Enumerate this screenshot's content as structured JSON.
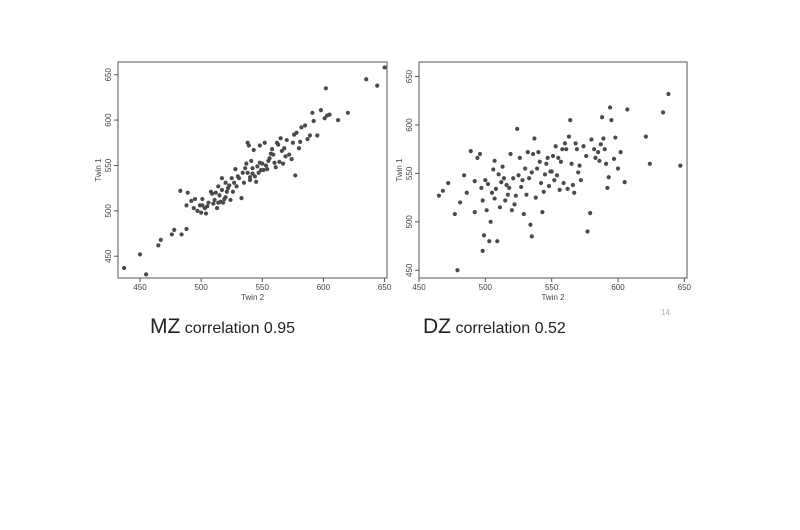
{
  "colors": {
    "point": "#4a4a4a",
    "frame": "#555555",
    "background": "#ffffff"
  },
  "captions": {
    "mz": {
      "big": "MZ",
      "small": " correlation 0.95"
    },
    "dz": {
      "big": "DZ",
      "small": " correlation 0.52"
    }
  },
  "page_number": "14",
  "chart_data": [
    {
      "type": "scatter",
      "xlabel": "Twin 2",
      "ylabel": "Twin 1",
      "xlim": [
        432,
        652
      ],
      "ylim": [
        426,
        664
      ],
      "xticks": [
        450,
        500,
        550,
        600,
        650
      ],
      "yticks": [
        450,
        500,
        550,
        600,
        650
      ],
      "grid": false,
      "points": [
        [
          437,
          437
        ],
        [
          450,
          452
        ],
        [
          455,
          430
        ],
        [
          465,
          462
        ],
        [
          467,
          468
        ],
        [
          476,
          474
        ],
        [
          478,
          479
        ],
        [
          484,
          474
        ],
        [
          488,
          480
        ],
        [
          483,
          522
        ],
        [
          488,
          506
        ],
        [
          489,
          520
        ],
        [
          492,
          511
        ],
        [
          494,
          503
        ],
        [
          495,
          513
        ],
        [
          497,
          500
        ],
        [
          499,
          506
        ],
        [
          500,
          498
        ],
        [
          501,
          506
        ],
        [
          501,
          513
        ],
        [
          503,
          503
        ],
        [
          504,
          497
        ],
        [
          505,
          505
        ],
        [
          506,
          509
        ],
        [
          508,
          521
        ],
        [
          509,
          519
        ],
        [
          510,
          508
        ],
        [
          511,
          512
        ],
        [
          512,
          520
        ],
        [
          513,
          503
        ],
        [
          514,
          509
        ],
        [
          514,
          527
        ],
        [
          515,
          517
        ],
        [
          516,
          510
        ],
        [
          517,
          523
        ],
        [
          517,
          536
        ],
        [
          518,
          509
        ],
        [
          519,
          513
        ],
        [
          520,
          531
        ],
        [
          520,
          515
        ],
        [
          521,
          521
        ],
        [
          522,
          525
        ],
        [
          523,
          528
        ],
        [
          524,
          512
        ],
        [
          525,
          536
        ],
        [
          526,
          521
        ],
        [
          527,
          531
        ],
        [
          528,
          546
        ],
        [
          529,
          527
        ],
        [
          530,
          538
        ],
        [
          531,
          536
        ],
        [
          533,
          514
        ],
        [
          534,
          542
        ],
        [
          535,
          531
        ],
        [
          536,
          547
        ],
        [
          537,
          552
        ],
        [
          538,
          542
        ],
        [
          538,
          575
        ],
        [
          539,
          572
        ],
        [
          540,
          537
        ],
        [
          540,
          534
        ],
        [
          541,
          555
        ],
        [
          542,
          547
        ],
        [
          542,
          541
        ],
        [
          543,
          567
        ],
        [
          544,
          538
        ],
        [
          545,
          532
        ],
        [
          546,
          549
        ],
        [
          547,
          542
        ],
        [
          548,
          553
        ],
        [
          548,
          572
        ],
        [
          549,
          545
        ],
        [
          550,
          552
        ],
        [
          551,
          545
        ],
        [
          552,
          575
        ],
        [
          553,
          550
        ],
        [
          554,
          546
        ],
        [
          555,
          555
        ],
        [
          556,
          558
        ],
        [
          557,
          563
        ],
        [
          558,
          568
        ],
        [
          559,
          562
        ],
        [
          560,
          553
        ],
        [
          561,
          548
        ],
        [
          562,
          575
        ],
        [
          563,
          573
        ],
        [
          564,
          554
        ],
        [
          565,
          580
        ],
        [
          566,
          566
        ],
        [
          567,
          552
        ],
        [
          568,
          569
        ],
        [
          569,
          560
        ],
        [
          570,
          578
        ],
        [
          572,
          562
        ],
        [
          574,
          557
        ],
        [
          575,
          575
        ],
        [
          576,
          584
        ],
        [
          577,
          539
        ],
        [
          578,
          586
        ],
        [
          580,
          569
        ],
        [
          581,
          576
        ],
        [
          582,
          592
        ],
        [
          585,
          594
        ],
        [
          587,
          579
        ],
        [
          589,
          583
        ],
        [
          591,
          608
        ],
        [
          592,
          599
        ],
        [
          595,
          583
        ],
        [
          598,
          611
        ],
        [
          601,
          602
        ],
        [
          602,
          635
        ],
        [
          603,
          605
        ],
        [
          605,
          606
        ],
        [
          612,
          600
        ],
        [
          620,
          608
        ],
        [
          635,
          645
        ],
        [
          644,
          638
        ],
        [
          650,
          658
        ]
      ]
    },
    {
      "type": "scatter",
      "xlabel": "Twin 2",
      "ylabel": "Twin 1",
      "xlim": [
        450,
        652
      ],
      "ylim": [
        442,
        665
      ],
      "xticks": [
        450,
        500,
        550,
        600,
        650
      ],
      "yticks": [
        450,
        500,
        550,
        600,
        650
      ],
      "grid": false,
      "points": [
        [
          465,
          527
        ],
        [
          468,
          532
        ],
        [
          472,
          540
        ],
        [
          477,
          508
        ],
        [
          479,
          450
        ],
        [
          481,
          520
        ],
        [
          484,
          548
        ],
        [
          486,
          530
        ],
        [
          489,
          573
        ],
        [
          492,
          510
        ],
        [
          492,
          542
        ],
        [
          494,
          566
        ],
        [
          496,
          570
        ],
        [
          497,
          535
        ],
        [
          498,
          522
        ],
        [
          498,
          470
        ],
        [
          499,
          486
        ],
        [
          500,
          543
        ],
        [
          501,
          512
        ],
        [
          502,
          539
        ],
        [
          503,
          480
        ],
        [
          504,
          500
        ],
        [
          505,
          530
        ],
        [
          506,
          554
        ],
        [
          507,
          563
        ],
        [
          507,
          524
        ],
        [
          508,
          534
        ],
        [
          509,
          480
        ],
        [
          510,
          549
        ],
        [
          511,
          515
        ],
        [
          512,
          541
        ],
        [
          513,
          557
        ],
        [
          514,
          545
        ],
        [
          515,
          522
        ],
        [
          516,
          538
        ],
        [
          517,
          528
        ],
        [
          518,
          535
        ],
        [
          519,
          570
        ],
        [
          520,
          512
        ],
        [
          521,
          545
        ],
        [
          522,
          518
        ],
        [
          523,
          527
        ],
        [
          524,
          596
        ],
        [
          525,
          548
        ],
        [
          526,
          566
        ],
        [
          527,
          536
        ],
        [
          528,
          543
        ],
        [
          529,
          508
        ],
        [
          530,
          555
        ],
        [
          531,
          528
        ],
        [
          532,
          572
        ],
        [
          533,
          545
        ],
        [
          534,
          497
        ],
        [
          535,
          485
        ],
        [
          535,
          551
        ],
        [
          536,
          570
        ],
        [
          537,
          586
        ],
        [
          538,
          525
        ],
        [
          539,
          555
        ],
        [
          540,
          572
        ],
        [
          541,
          562
        ],
        [
          542,
          540
        ],
        [
          543,
          510
        ],
        [
          544,
          531
        ],
        [
          545,
          549
        ],
        [
          546,
          560
        ],
        [
          547,
          566
        ],
        [
          548,
          537
        ],
        [
          549,
          552
        ],
        [
          550,
          552
        ],
        [
          551,
          568
        ],
        [
          552,
          543
        ],
        [
          553,
          578
        ],
        [
          554,
          548
        ],
        [
          555,
          566
        ],
        [
          556,
          533
        ],
        [
          557,
          562
        ],
        [
          558,
          575
        ],
        [
          559,
          540
        ],
        [
          560,
          581
        ],
        [
          561,
          575
        ],
        [
          562,
          534
        ],
        [
          563,
          588
        ],
        [
          564,
          605
        ],
        [
          565,
          560
        ],
        [
          566,
          538
        ],
        [
          567,
          530
        ],
        [
          568,
          581
        ],
        [
          569,
          575
        ],
        [
          570,
          551
        ],
        [
          571,
          558
        ],
        [
          572,
          543
        ],
        [
          574,
          578
        ],
        [
          576,
          568
        ],
        [
          577,
          490
        ],
        [
          579,
          509
        ],
        [
          580,
          585
        ],
        [
          582,
          575
        ],
        [
          583,
          566
        ],
        [
          585,
          572
        ],
        [
          586,
          563
        ],
        [
          587,
          580
        ],
        [
          588,
          608
        ],
        [
          589,
          586
        ],
        [
          590,
          575
        ],
        [
          591,
          560
        ],
        [
          592,
          535
        ],
        [
          593,
          546
        ],
        [
          594,
          618
        ],
        [
          595,
          605
        ],
        [
          597,
          565
        ],
        [
          598,
          587
        ],
        [
          600,
          555
        ],
        [
          602,
          572
        ],
        [
          605,
          541
        ],
        [
          607,
          616
        ],
        [
          621,
          588
        ],
        [
          624,
          560
        ],
        [
          634,
          613
        ],
        [
          638,
          632
        ],
        [
          647,
          558
        ]
      ]
    }
  ]
}
